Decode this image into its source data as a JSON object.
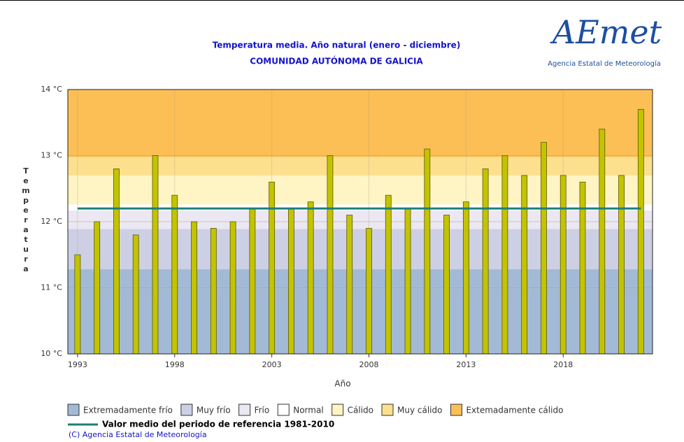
{
  "chart_data": {
    "type": "bar",
    "title": "Temperatura media. Año natural (enero - diciembre)",
    "subtitle": "COMUNIDAD AUTÓNOMA DE GALICIA",
    "logo_text": "AEmet",
    "logo_caption": "Agencia Estatal de Meteorología",
    "x_label": "Año",
    "y_label": "Temperatura",
    "x": [
      1993,
      1994,
      1995,
      1996,
      1997,
      1998,
      1999,
      2000,
      2001,
      2002,
      2003,
      2004,
      2005,
      2006,
      2007,
      2008,
      2009,
      2010,
      2011,
      2012,
      2013,
      2014,
      2015,
      2016,
      2017,
      2018,
      2019,
      2020,
      2021,
      2022
    ],
    "values": [
      11.5,
      12.0,
      12.8,
      11.8,
      13.0,
      12.4,
      12.0,
      11.9,
      12.0,
      12.2,
      12.6,
      12.2,
      12.3,
      13.0,
      12.1,
      11.9,
      12.4,
      12.2,
      13.1,
      12.1,
      12.3,
      12.8,
      13.0,
      12.7,
      13.2,
      12.7,
      12.6,
      13.4,
      12.7,
      13.7
    ],
    "color": "#c3c300",
    "xlim": [
      1992.5,
      2022.6
    ],
    "xticks": [
      1993,
      1998,
      2003,
      2008,
      2013,
      2018
    ],
    "ylim": [
      10,
      14
    ],
    "yticks": [
      {
        "value": 10,
        "label": "10 °C"
      },
      {
        "value": 11,
        "label": "11 °C"
      },
      {
        "value": 12,
        "label": "12 °C"
      },
      {
        "value": 13,
        "label": "13 °C"
      },
      {
        "value": 14,
        "label": "14 °C"
      }
    ],
    "grid": true,
    "bands": [
      {
        "name": "Extremadamente frío",
        "color": "#a3bad6",
        "from": 10,
        "to": 11.28
      },
      {
        "name": "Muy frío",
        "color": "#cdd0e4",
        "from": 11.28,
        "to": 11.89
      },
      {
        "name": "Frío",
        "color": "#ebe8f3",
        "from": 11.89,
        "to": 12.17
      },
      {
        "name": "Normal",
        "color": "#ffffff",
        "from": 12.17,
        "to": 12.26
      },
      {
        "name": "Cálido",
        "color": "#fff4c4",
        "from": 12.26,
        "to": 12.7
      },
      {
        "name": "Muy cálido",
        "color": "#fde08e",
        "from": 12.7,
        "to": 12.98
      },
      {
        "name": "Extemadamente cálido",
        "color": "#fbbf55",
        "from": 12.98,
        "to": 14
      }
    ],
    "reference": {
      "name": "Valor medio del periodo de referencia 1981-2010",
      "value": 12.2,
      "color": "#1a8078"
    },
    "copyright": "(C) Agencia Estatal de Meteorología"
  }
}
